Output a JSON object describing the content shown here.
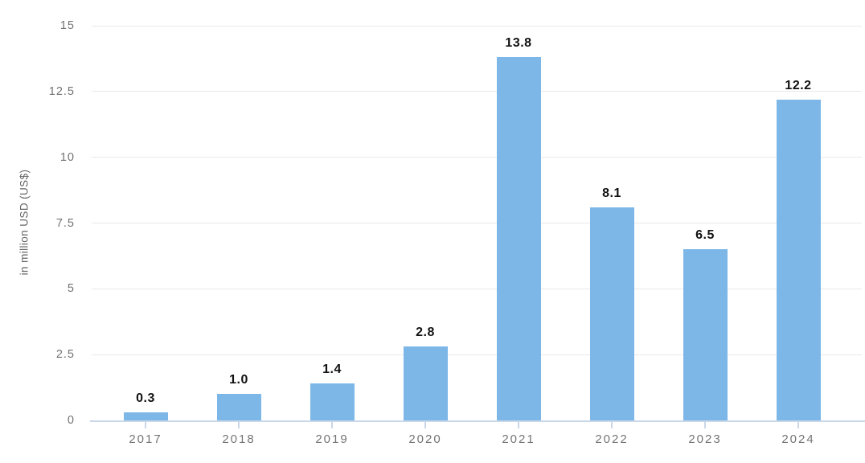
{
  "chart_data": {
    "type": "bar",
    "title": "",
    "categories": [
      "2017",
      "2018",
      "2019",
      "2020",
      "2021",
      "2022",
      "2023",
      "2024"
    ],
    "values": [
      0.3,
      1.0,
      1.4,
      2.8,
      13.8,
      8.1,
      6.5,
      12.2
    ],
    "value_labels": [
      "0.3",
      "1.0",
      "1.4",
      "2.8",
      "13.8",
      "8.1",
      "6.5",
      "12.2"
    ],
    "xlabel": "",
    "ylabel": "in million USD (US$)",
    "ylim": [
      0,
      15
    ],
    "yticks": [
      0,
      2.5,
      5,
      7.5,
      10,
      12.5,
      15
    ],
    "ytick_labels": [
      "0",
      "2.5",
      "5",
      "7.5",
      "10",
      "12.5",
      "15"
    ],
    "grid": "horizontal",
    "legend": "none",
    "colors": {
      "bar": "#7cb7e8",
      "gridline": "#e8e8e8",
      "axis_line": "#c9d7e8",
      "tick_label_color": "#757575",
      "value_label_color": "#111111",
      "background": "#ffffff"
    }
  }
}
